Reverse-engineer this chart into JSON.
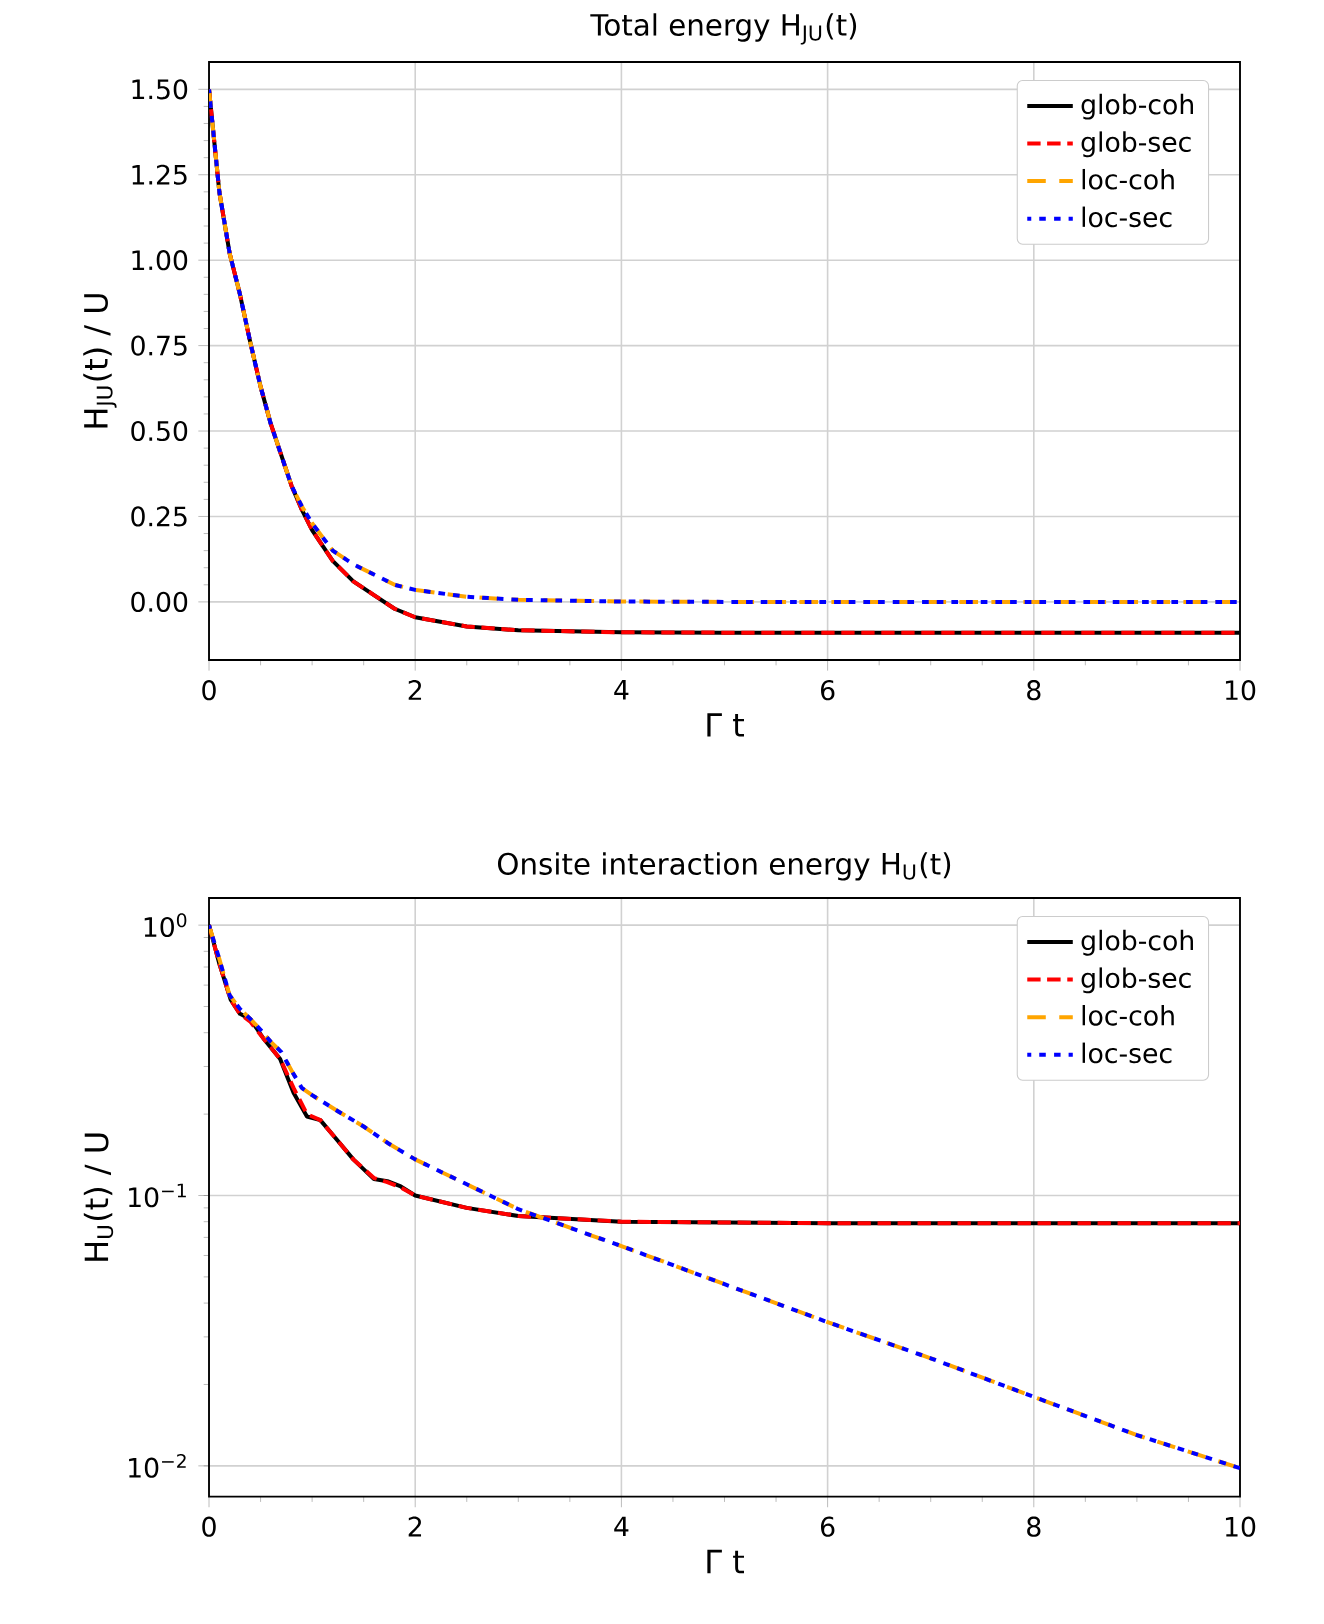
{
  "chart_data": [
    {
      "type": "line",
      "title": "Total energy H$_{JU}$(t)",
      "xlabel": "Γ t",
      "ylabel": "H$_{JU}$(t) / U",
      "xlim": [
        0,
        10
      ],
      "ylim": [
        -0.17,
        1.58
      ],
      "xticks": [
        0,
        2,
        4,
        6,
        8,
        10
      ],
      "yticks": [
        {
          "value": 0,
          "label": "0.00"
        },
        {
          "value": 0.25,
          "label": "0.25"
        },
        {
          "value": 0.5,
          "label": "0.50"
        },
        {
          "value": 0.75,
          "label": "0.75"
        },
        {
          "value": 1,
          "label": "1.00"
        },
        {
          "value": 1.25,
          "label": "1.25"
        },
        {
          "value": 1.5,
          "label": "1.50"
        }
      ],
      "grid": true,
      "legend": "top right",
      "series": [
        {
          "name": "glob-coh",
          "color": "#000000",
          "line_style": "solid",
          "x": [
            0,
            0.1,
            0.2,
            0.3,
            0.4,
            0.5,
            0.6,
            0.7,
            0.8,
            0.9,
            1.0,
            1.2,
            1.4,
            1.6,
            1.8,
            2.0,
            2.5,
            3,
            4,
            5,
            10
          ],
          "values": [
            1.5,
            1.2,
            1.02,
            0.9,
            0.76,
            0.63,
            0.52,
            0.43,
            0.34,
            0.27,
            0.21,
            0.12,
            0.06,
            0.02,
            -0.02,
            -0.045,
            -0.072,
            -0.083,
            -0.089,
            -0.09,
            -0.09
          ]
        },
        {
          "name": "glob-sec",
          "color": "#ff0000",
          "line_style": "dashed",
          "x": [
            0,
            0.1,
            0.2,
            0.3,
            0.4,
            0.5,
            0.6,
            0.7,
            0.8,
            0.9,
            1.0,
            1.2,
            1.4,
            1.6,
            1.8,
            2.0,
            2.5,
            3,
            4,
            5,
            10
          ],
          "values": [
            1.5,
            1.2,
            1.02,
            0.9,
            0.76,
            0.63,
            0.52,
            0.43,
            0.34,
            0.27,
            0.21,
            0.12,
            0.06,
            0.02,
            -0.02,
            -0.045,
            -0.072,
            -0.083,
            -0.089,
            -0.09,
            -0.09
          ]
        },
        {
          "name": "loc-coh",
          "color": "#ffa500",
          "line_style": "dashed",
          "x": [
            0,
            0.1,
            0.2,
            0.3,
            0.4,
            0.5,
            0.6,
            0.7,
            0.8,
            0.9,
            1.0,
            1.2,
            1.4,
            1.6,
            1.8,
            2.0,
            2.5,
            3,
            4,
            5,
            10
          ],
          "values": [
            1.5,
            1.2,
            1.02,
            0.9,
            0.76,
            0.63,
            0.52,
            0.43,
            0.34,
            0.28,
            0.23,
            0.15,
            0.11,
            0.08,
            0.05,
            0.035,
            0.015,
            0.006,
            0.001,
            0,
            0
          ]
        },
        {
          "name": "loc-sec",
          "color": "#0000ff",
          "line_style": "dotted",
          "x": [
            0,
            0.1,
            0.2,
            0.3,
            0.4,
            0.5,
            0.6,
            0.7,
            0.8,
            0.9,
            1.0,
            1.2,
            1.4,
            1.6,
            1.8,
            2.0,
            2.5,
            3,
            4,
            5,
            10
          ],
          "values": [
            1.5,
            1.2,
            1.02,
            0.9,
            0.76,
            0.63,
            0.52,
            0.43,
            0.34,
            0.28,
            0.23,
            0.15,
            0.11,
            0.08,
            0.05,
            0.035,
            0.015,
            0.006,
            0.001,
            0,
            0
          ]
        }
      ]
    },
    {
      "type": "line",
      "title": "Onsite interaction energy H$_{U}$(t)",
      "xlabel": "Γ t",
      "ylabel": "H$_{U}$(t) / U",
      "log": true,
      "xlim": [
        0,
        10
      ],
      "ylim": [
        0.0077,
        1.26
      ],
      "xticks": [
        0,
        2,
        4,
        6,
        8,
        10
      ],
      "yticks": [
        {
          "value": 0.01,
          "label": "10$^{−2}$"
        },
        {
          "value": 0.1,
          "label": "10$^{−1}$"
        },
        {
          "value": 1,
          "label": "10$^{0}$"
        }
      ],
      "grid": true,
      "legend": "top right",
      "series": [
        {
          "name": "glob-coh",
          "color": "#000000",
          "line_style": "solid",
          "x": [
            0,
            0.1,
            0.21,
            0.3,
            0.4,
            0.53,
            0.69,
            0.82,
            0.95,
            1.08,
            1.21,
            1.4,
            1.6,
            1.73,
            1.86,
            2,
            2.5,
            3,
            4,
            6,
            10
          ],
          "values": [
            1.0,
            0.72,
            0.53,
            0.47,
            0.45,
            0.38,
            0.32,
            0.24,
            0.196,
            0.19,
            0.166,
            0.136,
            0.115,
            0.113,
            0.108,
            0.1,
            0.09,
            0.084,
            0.08,
            0.079,
            0.079
          ]
        },
        {
          "name": "glob-sec",
          "color": "#ff0000",
          "line_style": "dashed",
          "x": [
            0,
            0.1,
            0.21,
            0.3,
            0.4,
            0.53,
            0.69,
            0.82,
            0.95,
            1.08,
            1.21,
            1.4,
            1.6,
            1.73,
            1.86,
            2,
            2.5,
            3,
            4,
            6,
            10
          ],
          "values": [
            1.0,
            0.72,
            0.53,
            0.47,
            0.44,
            0.38,
            0.32,
            0.25,
            0.2,
            0.19,
            0.166,
            0.136,
            0.116,
            0.112,
            0.107,
            0.1,
            0.09,
            0.084,
            0.08,
            0.079,
            0.079
          ]
        },
        {
          "name": "loc-coh",
          "color": "#ffa500",
          "line_style": "dashed",
          "x": [
            0,
            0.1,
            0.2,
            0.3,
            0.4,
            0.5,
            0.6,
            0.7,
            0.8,
            0.9,
            1.0,
            1.25,
            1.5,
            1.75,
            2,
            2.5,
            3,
            3.5,
            4,
            5,
            6,
            7,
            8,
            9,
            10
          ],
          "values": [
            1.0,
            0.75,
            0.55,
            0.49,
            0.45,
            0.41,
            0.37,
            0.34,
            0.29,
            0.25,
            0.235,
            0.205,
            0.18,
            0.155,
            0.136,
            0.11,
            0.089,
            0.076,
            0.065,
            0.047,
            0.034,
            0.025,
            0.018,
            0.013,
            0.0098
          ]
        },
        {
          "name": "loc-sec",
          "color": "#0000ff",
          "line_style": "dotted",
          "x": [
            0,
            0.1,
            0.2,
            0.3,
            0.4,
            0.5,
            0.6,
            0.7,
            0.8,
            0.9,
            1.0,
            1.25,
            1.5,
            1.75,
            2,
            2.5,
            3,
            3.5,
            4,
            5,
            6,
            7,
            8,
            9,
            10
          ],
          "values": [
            1.0,
            0.75,
            0.55,
            0.49,
            0.45,
            0.41,
            0.37,
            0.34,
            0.29,
            0.25,
            0.235,
            0.205,
            0.18,
            0.155,
            0.136,
            0.11,
            0.089,
            0.076,
            0.065,
            0.047,
            0.034,
            0.025,
            0.018,
            0.013,
            0.0098
          ]
        }
      ]
    }
  ]
}
